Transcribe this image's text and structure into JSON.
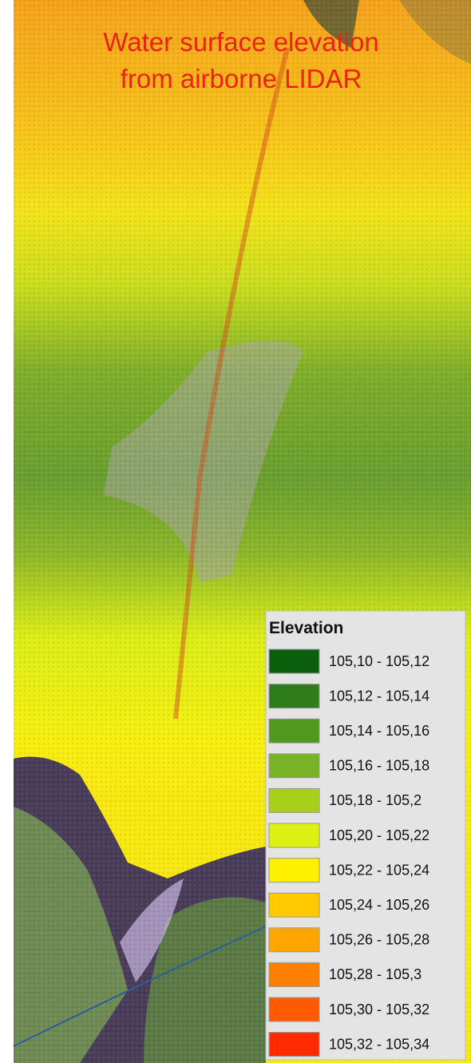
{
  "title": {
    "lines": [
      "Water surface elevation",
      "from airborne LIDAR"
    ]
  },
  "legend": {
    "title": "Elevation",
    "items": [
      {
        "label": "105,10 - 105,12",
        "color": "#0b5e0b"
      },
      {
        "label": "105,12 - 105,14",
        "color": "#2e7d1a"
      },
      {
        "label": "105,14 - 105,16",
        "color": "#4f9a1e"
      },
      {
        "label": "105,16 - 105,18",
        "color": "#7ab227"
      },
      {
        "label": "105,18 - 105,2",
        "color": "#a8cf1a"
      },
      {
        "label": "105,20 - 105,22",
        "color": "#ddf014"
      },
      {
        "label": "105,22 - 105,24",
        "color": "#fff000"
      },
      {
        "label": "105,24 - 105,26",
        "color": "#ffc800"
      },
      {
        "label": "105,26 - 105,28",
        "color": "#ffa500"
      },
      {
        "label": "105,28 - 105,3",
        "color": "#ff8000"
      },
      {
        "label": "105,30 - 105,32",
        "color": "#ff5a00"
      },
      {
        "label": "105,32 - 105,34",
        "color": "#ff2a00"
      }
    ]
  }
}
